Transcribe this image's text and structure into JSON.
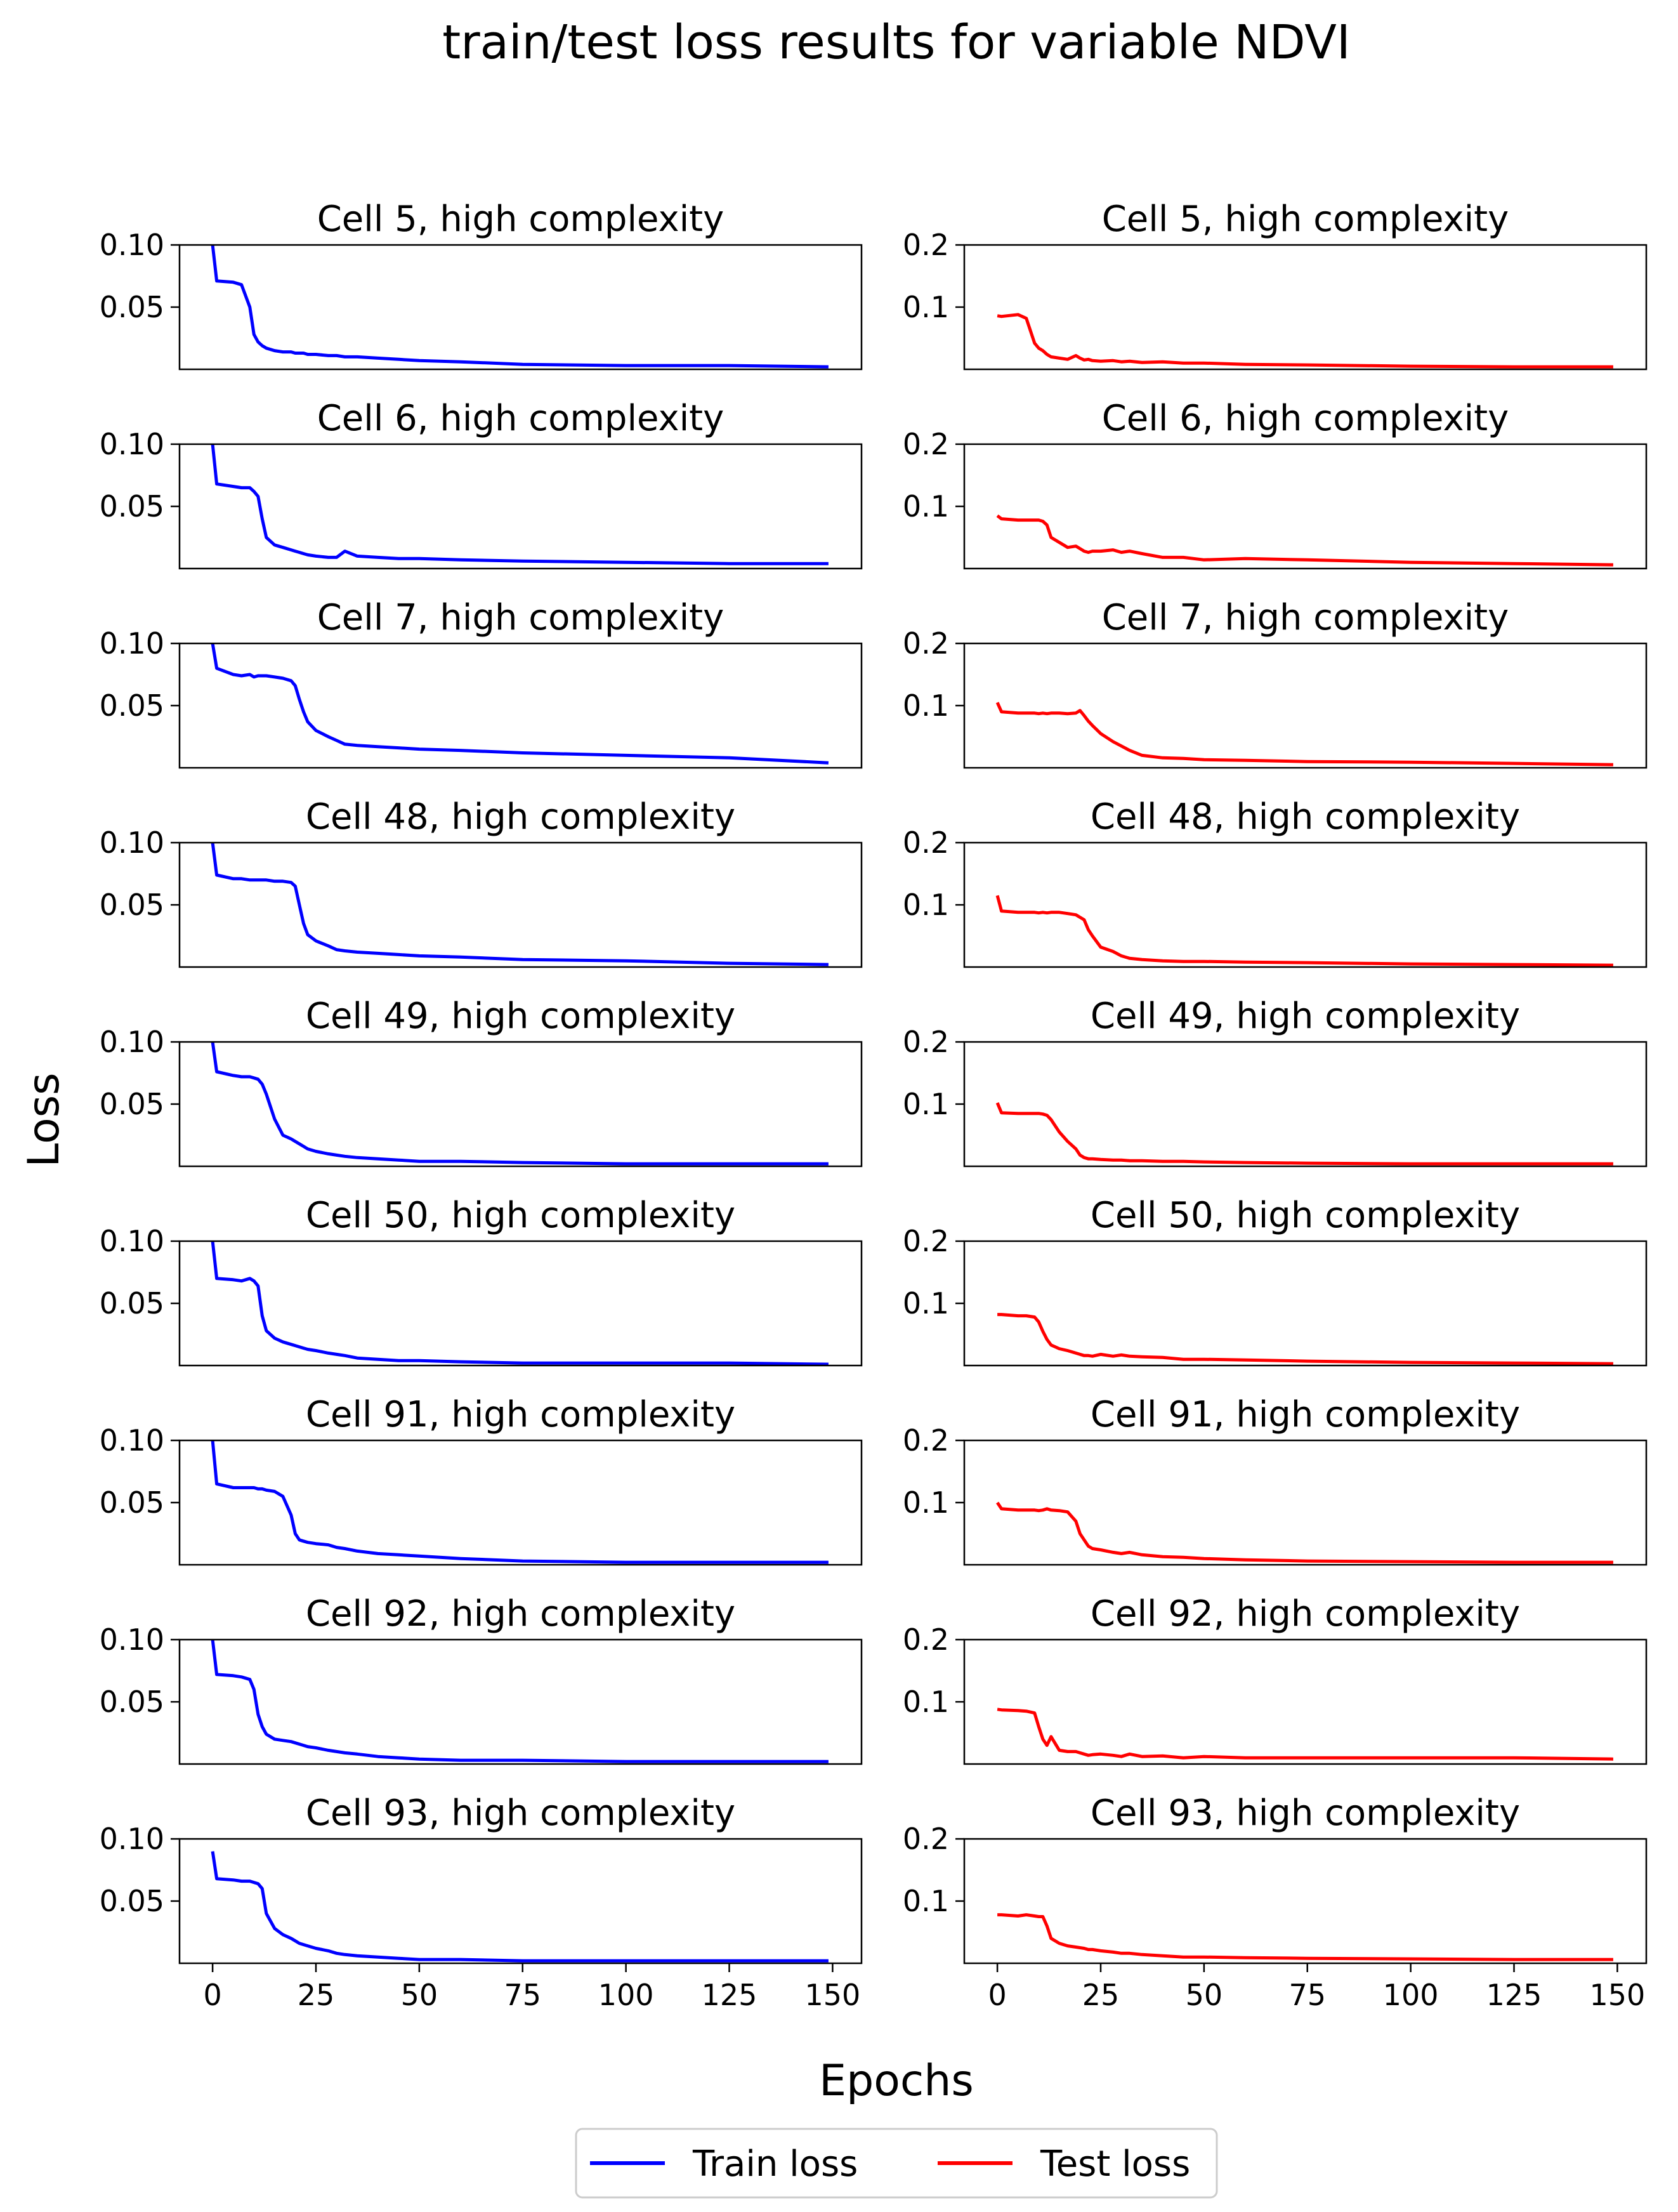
{
  "figure": {
    "title": "train/test loss results for variable NDVI",
    "xlabel": "Epochs",
    "ylabel": "Loss"
  },
  "legend": {
    "placement": "bottom-center",
    "items": [
      {
        "label": "Train loss",
        "color": "#0000ff"
      },
      {
        "label": "Test loss",
        "color": "#ff0000"
      }
    ]
  },
  "colors": {
    "train": "#0000ff",
    "test": "#ff0000"
  },
  "chart_data": {
    "type": "line",
    "layout": "9 rows x 2 columns of subplots",
    "x_ticks": [
      0,
      25,
      50,
      75,
      100,
      125,
      150
    ],
    "xlim": [
      -8,
      157
    ],
    "train_axis": {
      "ylim": [
        0.0,
        0.1
      ],
      "y_ticks": [
        0.05,
        0.1
      ],
      "y_tick_labels": [
        "0.05",
        "0.10"
      ]
    },
    "test_axis": {
      "ylim": [
        0.0,
        0.2
      ],
      "y_ticks": [
        0.1,
        0.2
      ],
      "y_tick_labels": [
        "0.1",
        "0.2"
      ]
    },
    "x_points": [
      0,
      1,
      5,
      7,
      9,
      10,
      11,
      12,
      13,
      15,
      17,
      19,
      20,
      21,
      22,
      23,
      25,
      28,
      30,
      32,
      35,
      40,
      45,
      50,
      60,
      75,
      100,
      125,
      149
    ],
    "panels": [
      {
        "title": "Cell 5, high complexity",
        "train": [
          0.1,
          0.071,
          0.07,
          0.068,
          0.05,
          0.028,
          0.022,
          0.019,
          0.017,
          0.015,
          0.014,
          0.014,
          0.013,
          0.013,
          0.013,
          0.012,
          0.012,
          0.011,
          0.011,
          0.01,
          0.01,
          0.009,
          0.008,
          0.007,
          0.006,
          0.004,
          0.003,
          0.003,
          0.002
        ],
        "test": [
          0.086,
          0.085,
          0.088,
          0.082,
          0.042,
          0.034,
          0.03,
          0.024,
          0.02,
          0.018,
          0.016,
          0.022,
          0.018,
          0.015,
          0.016,
          0.014,
          0.013,
          0.014,
          0.012,
          0.013,
          0.011,
          0.012,
          0.01,
          0.01,
          0.008,
          0.007,
          0.005,
          0.004,
          0.004
        ]
      },
      {
        "title": "Cell 6, high complexity",
        "train": [
          0.1,
          0.068,
          0.066,
          0.065,
          0.065,
          0.062,
          0.058,
          0.04,
          0.025,
          0.019,
          0.017,
          0.015,
          0.014,
          0.013,
          0.012,
          0.011,
          0.01,
          0.009,
          0.009,
          0.014,
          0.01,
          0.009,
          0.008,
          0.008,
          0.007,
          0.006,
          0.005,
          0.004,
          0.004
        ],
        "test": [
          0.085,
          0.08,
          0.078,
          0.078,
          0.078,
          0.078,
          0.076,
          0.07,
          0.05,
          0.042,
          0.034,
          0.036,
          0.032,
          0.028,
          0.026,
          0.028,
          0.028,
          0.03,
          0.026,
          0.028,
          0.024,
          0.018,
          0.018,
          0.014,
          0.016,
          0.014,
          0.01,
          0.008,
          0.006
        ]
      },
      {
        "title": "Cell 7, high complexity",
        "train": [
          0.1,
          0.08,
          0.075,
          0.074,
          0.075,
          0.073,
          0.074,
          0.074,
          0.074,
          0.073,
          0.072,
          0.07,
          0.066,
          0.055,
          0.045,
          0.037,
          0.03,
          0.025,
          0.022,
          0.019,
          0.018,
          0.017,
          0.016,
          0.015,
          0.014,
          0.012,
          0.01,
          0.008,
          0.004
        ],
        "test": [
          0.105,
          0.09,
          0.088,
          0.088,
          0.088,
          0.087,
          0.088,
          0.087,
          0.088,
          0.088,
          0.087,
          0.088,
          0.092,
          0.084,
          0.075,
          0.068,
          0.055,
          0.042,
          0.035,
          0.028,
          0.02,
          0.016,
          0.015,
          0.013,
          0.012,
          0.01,
          0.009,
          0.007,
          0.005
        ]
      },
      {
        "title": "Cell 48, high complexity",
        "train": [
          0.1,
          0.074,
          0.071,
          0.071,
          0.07,
          0.07,
          0.07,
          0.07,
          0.07,
          0.069,
          0.069,
          0.068,
          0.065,
          0.05,
          0.035,
          0.026,
          0.021,
          0.017,
          0.014,
          0.013,
          0.012,
          0.011,
          0.01,
          0.009,
          0.008,
          0.006,
          0.005,
          0.003,
          0.002
        ],
        "test": [
          0.115,
          0.09,
          0.088,
          0.088,
          0.088,
          0.087,
          0.088,
          0.087,
          0.088,
          0.088,
          0.086,
          0.084,
          0.08,
          0.076,
          0.06,
          0.05,
          0.032,
          0.025,
          0.018,
          0.014,
          0.012,
          0.01,
          0.009,
          0.009,
          0.008,
          0.007,
          0.005,
          0.004,
          0.003
        ]
      },
      {
        "title": "Cell 49, high complexity",
        "train": [
          0.1,
          0.076,
          0.073,
          0.072,
          0.072,
          0.071,
          0.07,
          0.066,
          0.058,
          0.038,
          0.025,
          0.022,
          0.02,
          0.018,
          0.016,
          0.014,
          0.012,
          0.01,
          0.009,
          0.008,
          0.007,
          0.006,
          0.005,
          0.004,
          0.004,
          0.003,
          0.002,
          0.002,
          0.002
        ],
        "test": [
          0.102,
          0.086,
          0.085,
          0.085,
          0.085,
          0.085,
          0.084,
          0.082,
          0.075,
          0.055,
          0.04,
          0.028,
          0.018,
          0.014,
          0.012,
          0.012,
          0.011,
          0.01,
          0.01,
          0.009,
          0.009,
          0.008,
          0.008,
          0.007,
          0.006,
          0.005,
          0.004,
          0.004,
          0.004
        ]
      },
      {
        "title": "Cell 50, high complexity",
        "train": [
          0.1,
          0.07,
          0.069,
          0.068,
          0.07,
          0.068,
          0.064,
          0.04,
          0.028,
          0.022,
          0.019,
          0.017,
          0.016,
          0.015,
          0.014,
          0.013,
          0.012,
          0.01,
          0.009,
          0.008,
          0.006,
          0.005,
          0.004,
          0.004,
          0.003,
          0.002,
          0.002,
          0.002,
          0.001
        ],
        "test": [
          0.082,
          0.082,
          0.08,
          0.08,
          0.078,
          0.07,
          0.055,
          0.042,
          0.033,
          0.027,
          0.024,
          0.02,
          0.018,
          0.016,
          0.016,
          0.015,
          0.018,
          0.015,
          0.017,
          0.015,
          0.014,
          0.013,
          0.01,
          0.01,
          0.009,
          0.007,
          0.005,
          0.004,
          0.003
        ]
      },
      {
        "title": "Cell 91, high complexity",
        "train": [
          0.1,
          0.065,
          0.062,
          0.062,
          0.062,
          0.062,
          0.061,
          0.061,
          0.06,
          0.059,
          0.055,
          0.04,
          0.025,
          0.02,
          0.019,
          0.018,
          0.017,
          0.016,
          0.014,
          0.013,
          0.011,
          0.009,
          0.008,
          0.007,
          0.005,
          0.003,
          0.002,
          0.002,
          0.002
        ],
        "test": [
          0.1,
          0.09,
          0.088,
          0.088,
          0.088,
          0.087,
          0.088,
          0.09,
          0.088,
          0.087,
          0.085,
          0.07,
          0.05,
          0.04,
          0.03,
          0.026,
          0.024,
          0.02,
          0.018,
          0.02,
          0.016,
          0.013,
          0.012,
          0.01,
          0.008,
          0.006,
          0.005,
          0.004,
          0.004
        ]
      },
      {
        "title": "Cell 92, high complexity",
        "train": [
          0.1,
          0.072,
          0.071,
          0.07,
          0.068,
          0.06,
          0.04,
          0.03,
          0.024,
          0.02,
          0.019,
          0.018,
          0.017,
          0.016,
          0.015,
          0.014,
          0.013,
          0.011,
          0.01,
          0.009,
          0.008,
          0.006,
          0.005,
          0.004,
          0.003,
          0.003,
          0.002,
          0.002,
          0.002
        ],
        "test": [
          0.088,
          0.087,
          0.086,
          0.085,
          0.082,
          0.06,
          0.04,
          0.03,
          0.044,
          0.022,
          0.02,
          0.02,
          0.018,
          0.016,
          0.014,
          0.015,
          0.016,
          0.014,
          0.012,
          0.016,
          0.012,
          0.013,
          0.01,
          0.012,
          0.01,
          0.01,
          0.01,
          0.01,
          0.008
        ]
      },
      {
        "title": "Cell 93, high complexity",
        "train": [
          0.09,
          0.068,
          0.067,
          0.066,
          0.066,
          0.065,
          0.064,
          0.06,
          0.04,
          0.028,
          0.023,
          0.02,
          0.018,
          0.016,
          0.015,
          0.014,
          0.012,
          0.01,
          0.008,
          0.007,
          0.006,
          0.005,
          0.004,
          0.003,
          0.003,
          0.002,
          0.002,
          0.002,
          0.002
        ],
        "test": [
          0.078,
          0.078,
          0.076,
          0.078,
          0.076,
          0.075,
          0.075,
          0.06,
          0.04,
          0.032,
          0.028,
          0.026,
          0.025,
          0.024,
          0.022,
          0.022,
          0.02,
          0.018,
          0.016,
          0.016,
          0.014,
          0.012,
          0.01,
          0.01,
          0.009,
          0.008,
          0.007,
          0.006,
          0.006
        ]
      }
    ]
  }
}
